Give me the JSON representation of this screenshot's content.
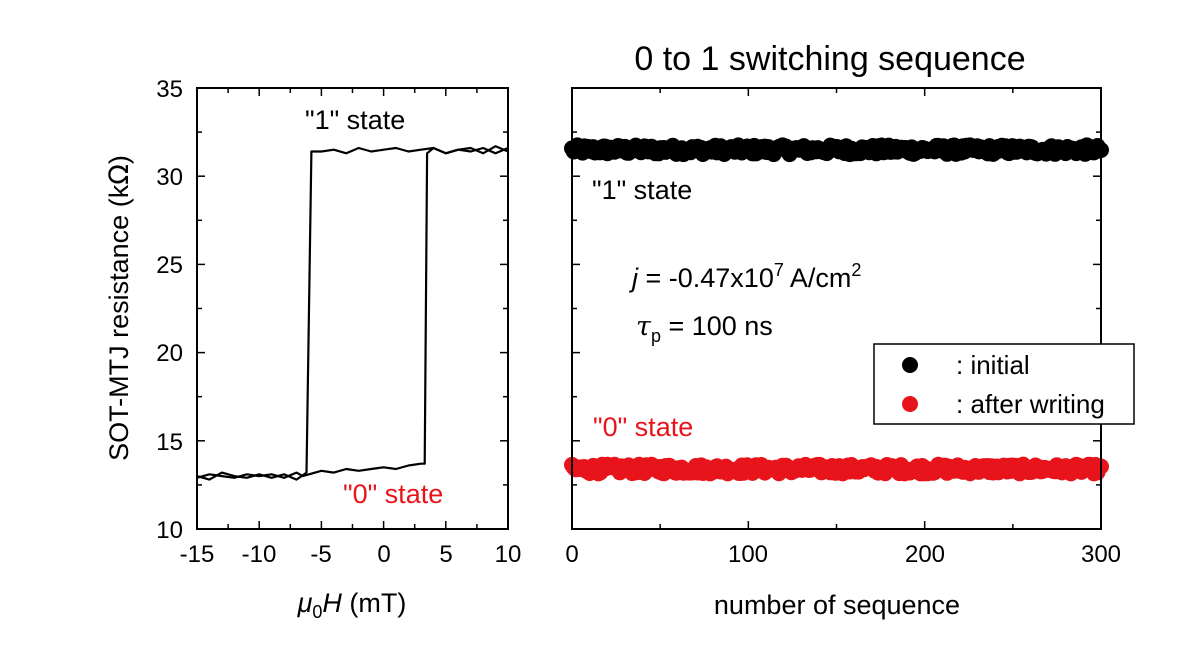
{
  "chart_data": [
    {
      "type": "line",
      "ylabel": "SOT-MTJ resistance (kΩ)",
      "ylabel_text": "SOT-MTJ resistance (k",
      "ylabel_unit_symbol": "Ω",
      "ylabel_close": ")",
      "xlabel_prefix": "μ",
      "xlabel_sub": "0",
      "xlabel_var": "H",
      "xlabel_unit": " (mT)",
      "xlim": [
        -15,
        10
      ],
      "ylim": [
        10,
        35
      ],
      "xticks": [
        "-15",
        "-10",
        "-5",
        "0",
        "5",
        "10"
      ],
      "yticks": [
        "10",
        "15",
        "20",
        "25",
        "30",
        "35"
      ],
      "annotations": {
        "state1": "\"1\" state",
        "state0": "\"0\" state"
      },
      "colors": {
        "state1": "#000000",
        "state0": "#e8141b",
        "curve": "#000000"
      },
      "series": [
        {
          "x": [
            -15,
            -14,
            -13,
            -12,
            -11,
            -10,
            -9,
            -8,
            -7,
            -6.5,
            -6,
            -5,
            -4,
            -3,
            -2,
            -1,
            0,
            1,
            2,
            3,
            3.3,
            3.5,
            4,
            5,
            6,
            7,
            8,
            9,
            10
          ],
          "y": [
            12.9,
            13.1,
            13.0,
            12.9,
            13.1,
            13.0,
            13.1,
            12.9,
            13.2,
            13.0,
            13.1,
            13.3,
            13.2,
            13.4,
            13.3,
            13.4,
            13.5,
            13.4,
            13.6,
            13.7,
            13.7,
            31.3,
            31.6,
            31.3,
            31.5,
            31.4,
            31.6,
            31.3,
            31.6
          ]
        },
        {
          "x": [
            10,
            9,
            8,
            7,
            6,
            5,
            4,
            3,
            2,
            1,
            0,
            -1,
            -2,
            -3,
            -4,
            -5,
            -5.8,
            -6.2,
            -7,
            -8,
            -9,
            -10,
            -11,
            -12,
            -13,
            -14,
            -15
          ],
          "y": [
            31.4,
            31.7,
            31.3,
            31.6,
            31.5,
            31.3,
            31.6,
            31.5,
            31.4,
            31.6,
            31.5,
            31.4,
            31.6,
            31.3,
            31.5,
            31.4,
            31.4,
            13.2,
            12.8,
            13.1,
            12.9,
            13.1,
            12.9,
            13.0,
            13.2,
            12.8,
            13.0
          ]
        }
      ]
    },
    {
      "type": "scatter",
      "title": "0 to 1 switching sequence",
      "xlabel": "number of sequence",
      "xlim": [
        0,
        300
      ],
      "ylim": [
        10,
        35
      ],
      "xticks": [
        "0",
        "100",
        "200",
        "300"
      ],
      "annotations": {
        "state1": "\"1\" state",
        "state0": "\"0\" state",
        "current_var": "j",
        "current_rest": " = -0.47x10",
        "current_exp": "7",
        "current_unit": " A/cm",
        "current_unit_exp": "2",
        "pulse_var": "τ",
        "pulse_sub": "p",
        "pulse_rest": " = 100 ns"
      },
      "legend": {
        "placement": "right",
        "entries": [
          ": initial",
          ": after writing"
        ]
      },
      "colors": {
        "initial": "#000000",
        "after_writing": "#e8141b"
      },
      "series": [
        {
          "legend_key": "initial",
          "color": "#000000",
          "x_range": [
            0,
            300
          ],
          "count": 300,
          "y_mean": 31.5,
          "y_spread": 0.25
        },
        {
          "legend_key": "after_writing",
          "color": "#e8141b",
          "x_range": [
            0,
            300
          ],
          "count": 300,
          "y_mean": 13.4,
          "y_spread": 0.25
        }
      ]
    }
  ]
}
